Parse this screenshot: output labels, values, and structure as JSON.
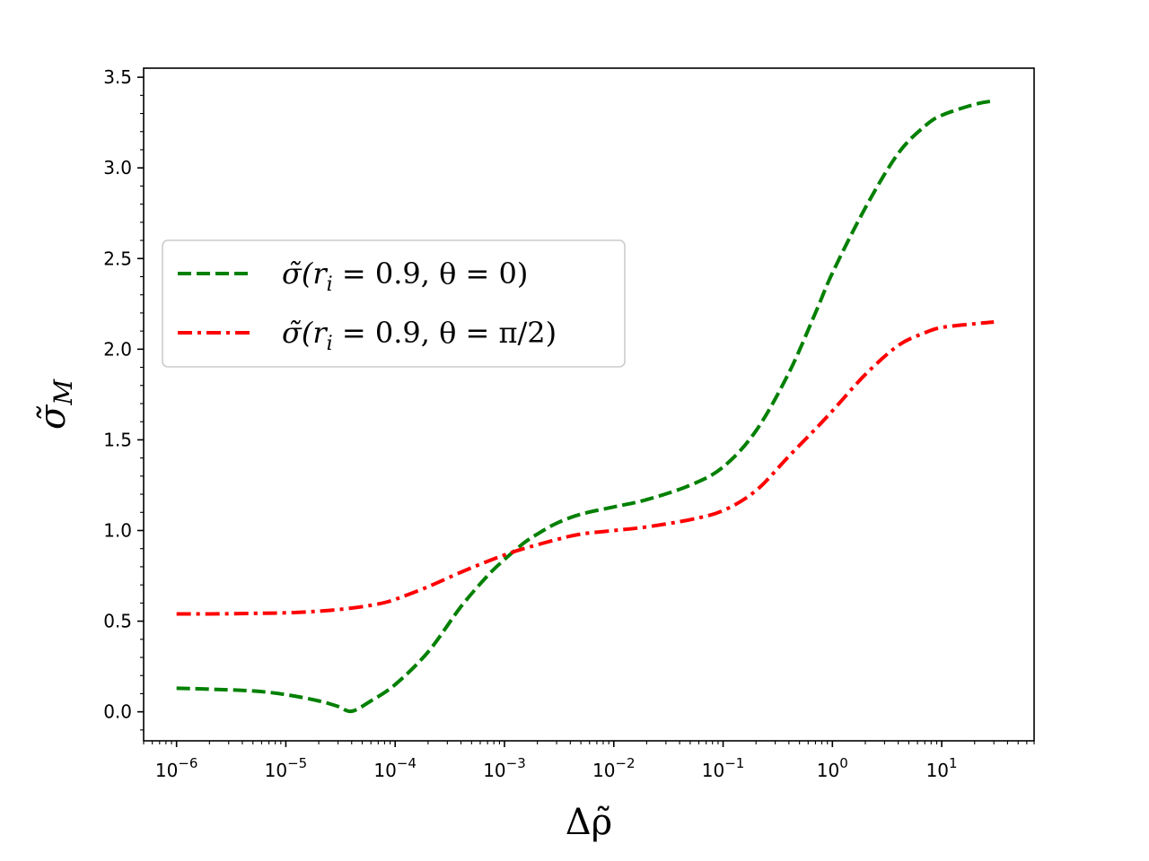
{
  "chart_data": {
    "type": "line",
    "xscale": "log",
    "xlabel": "Δρ̃",
    "ylabel": "σ̃",
    "ylabel_sub": "M",
    "xlim": [
      5e-07,
      70
    ],
    "ylim": [
      -0.16,
      3.55
    ],
    "x_ticks": [
      {
        "value": 1e-06,
        "base": "10",
        "exp": "−6"
      },
      {
        "value": 1e-05,
        "base": "10",
        "exp": "−5"
      },
      {
        "value": 0.0001,
        "base": "10",
        "exp": "−4"
      },
      {
        "value": 0.001,
        "base": "10",
        "exp": "−3"
      },
      {
        "value": 0.01,
        "base": "10",
        "exp": "−2"
      },
      {
        "value": 0.1,
        "base": "10",
        "exp": "−1"
      },
      {
        "value": 1,
        "base": "10",
        "exp": "0"
      },
      {
        "value": 10,
        "base": "10",
        "exp": "1"
      }
    ],
    "y_ticks": [
      "0.0",
      "0.5",
      "1.0",
      "1.5",
      "2.0",
      "2.5",
      "3.0",
      "3.5"
    ],
    "grid": false,
    "legend_position": "center-left",
    "series": [
      {
        "name": "σ̃(r_i = 0.9, θ = 0)",
        "legend_parts": {
          "pre": "σ̃(r",
          "sub": "i",
          "post": " = 0.9, θ = 0)"
        },
        "color": "#008000",
        "style": "dashed",
        "x": [
          1e-06,
          2e-06,
          5e-06,
          1e-05,
          2e-05,
          3e-05,
          4e-05,
          6e-05,
          0.0001,
          0.0002,
          0.0004,
          0.0007,
          0.001,
          0.0015,
          0.002,
          0.003,
          0.005,
          0.01,
          0.02,
          0.05,
          0.1,
          0.2,
          0.4,
          0.7,
          1,
          2,
          4,
          7,
          10,
          20,
          30
        ],
        "y": [
          0.13,
          0.125,
          0.115,
          0.095,
          0.06,
          0.03,
          0.003,
          0.06,
          0.15,
          0.33,
          0.58,
          0.75,
          0.84,
          0.93,
          0.98,
          1.04,
          1.09,
          1.13,
          1.17,
          1.25,
          1.35,
          1.55,
          1.87,
          2.2,
          2.42,
          2.78,
          3.08,
          3.23,
          3.29,
          3.35,
          3.37
        ]
      },
      {
        "name": "σ̃(r_i = 0.9, θ = π/2)",
        "legend_parts": {
          "pre": "σ̃(r",
          "sub": "i",
          "post": " = 0.9, θ = π/2)"
        },
        "color": "#ff0000",
        "style": "dashdot",
        "x": [
          1e-06,
          2e-06,
          5e-06,
          1e-05,
          2e-05,
          4e-05,
          7e-05,
          0.0001,
          0.0002,
          0.0004,
          0.0007,
          0.001,
          0.0015,
          0.003,
          0.005,
          0.01,
          0.02,
          0.05,
          0.1,
          0.2,
          0.4,
          0.7,
          1,
          2,
          4,
          7,
          10,
          20,
          30
        ],
        "y": [
          0.54,
          0.54,
          0.543,
          0.546,
          0.555,
          0.572,
          0.595,
          0.62,
          0.69,
          0.77,
          0.83,
          0.865,
          0.9,
          0.95,
          0.98,
          1.0,
          1.02,
          1.06,
          1.11,
          1.22,
          1.41,
          1.56,
          1.66,
          1.86,
          2.02,
          2.09,
          2.12,
          2.14,
          2.15
        ]
      }
    ]
  }
}
